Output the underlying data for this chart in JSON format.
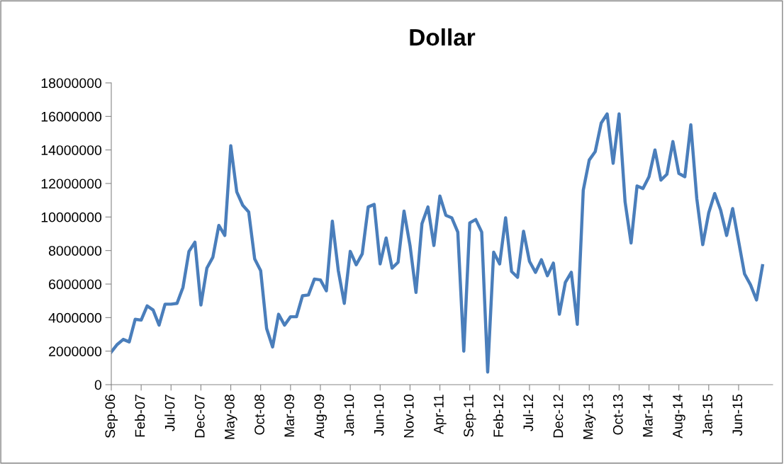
{
  "chart_data": {
    "type": "line",
    "title": "Dollar",
    "categories": [
      "Sep-06",
      null,
      null,
      null,
      null,
      "Feb-07",
      null,
      null,
      null,
      null,
      "Jul-07",
      null,
      null,
      null,
      null,
      "Dec-07",
      null,
      null,
      null,
      null,
      "May-08",
      null,
      null,
      null,
      null,
      "Oct-08",
      null,
      null,
      null,
      null,
      "Mar-09",
      null,
      null,
      null,
      null,
      "Aug-09",
      null,
      null,
      null,
      null,
      "Jan-10",
      null,
      null,
      null,
      null,
      "Jun-10",
      null,
      null,
      null,
      null,
      "Nov-10",
      null,
      null,
      null,
      null,
      "Apr-11",
      null,
      null,
      null,
      null,
      "Sep-11",
      null,
      null,
      null,
      null,
      "Feb-12",
      null,
      null,
      null,
      null,
      "Jul-12",
      null,
      null,
      null,
      null,
      "Dec-12",
      null,
      null,
      null,
      null,
      "May-13",
      null,
      null,
      null,
      null,
      "Oct-13",
      null,
      null,
      null,
      null,
      "Mar-14",
      null,
      null,
      null,
      null,
      "Aug-14",
      null,
      null,
      null,
      null,
      "Jan-15",
      null,
      null,
      null,
      null,
      "Jun-15",
      null,
      null,
      null,
      null
    ],
    "series": [
      {
        "color": "#4a7ebb",
        "values": [
          1950000,
          2400000,
          2700000,
          2550000,
          3900000,
          3850000,
          4700000,
          4450000,
          3550000,
          4800000,
          4800000,
          4850000,
          5800000,
          7950000,
          8500000,
          4750000,
          6950000,
          7600000,
          9500000,
          8900000,
          14250000,
          11500000,
          10700000,
          10300000,
          7500000,
          6800000,
          3350000,
          2250000,
          4200000,
          3550000,
          4050000,
          4050000,
          5300000,
          5350000,
          6300000,
          6250000,
          5600000,
          9750000,
          6800000,
          4850000,
          7950000,
          7150000,
          7800000,
          10600000,
          10750000,
          7200000,
          8750000,
          6950000,
          7300000,
          10350000,
          8300000,
          5500000,
          9600000,
          10600000,
          8300000,
          11250000,
          10100000,
          9950000,
          9100000,
          2000000,
          9650000,
          9850000,
          9100000,
          750000,
          7900000,
          7200000,
          9950000,
          6750000,
          6400000,
          9150000,
          7350000,
          6700000,
          7450000,
          6500000,
          7250000,
          4200000,
          6100000,
          6700000,
          3600000,
          11600000,
          13400000,
          13900000,
          15600000,
          16150000,
          13200000,
          16150000,
          10900000,
          8450000,
          11850000,
          11700000,
          12400000,
          14000000,
          12200000,
          12550000,
          14500000,
          12600000,
          12400000,
          15500000,
          11100000,
          8350000,
          10250000,
          11400000,
          10400000,
          8900000,
          10500000,
          8550000,
          6600000,
          5950000,
          5050000,
          7100000
        ]
      }
    ],
    "ylim": [
      0,
      18000000
    ],
    "yticks": [
      0,
      2000000,
      4000000,
      6000000,
      8000000,
      10000000,
      12000000,
      14000000,
      16000000,
      18000000
    ],
    "grid": false,
    "legend": false,
    "marker": "none",
    "line_style": "solid"
  }
}
